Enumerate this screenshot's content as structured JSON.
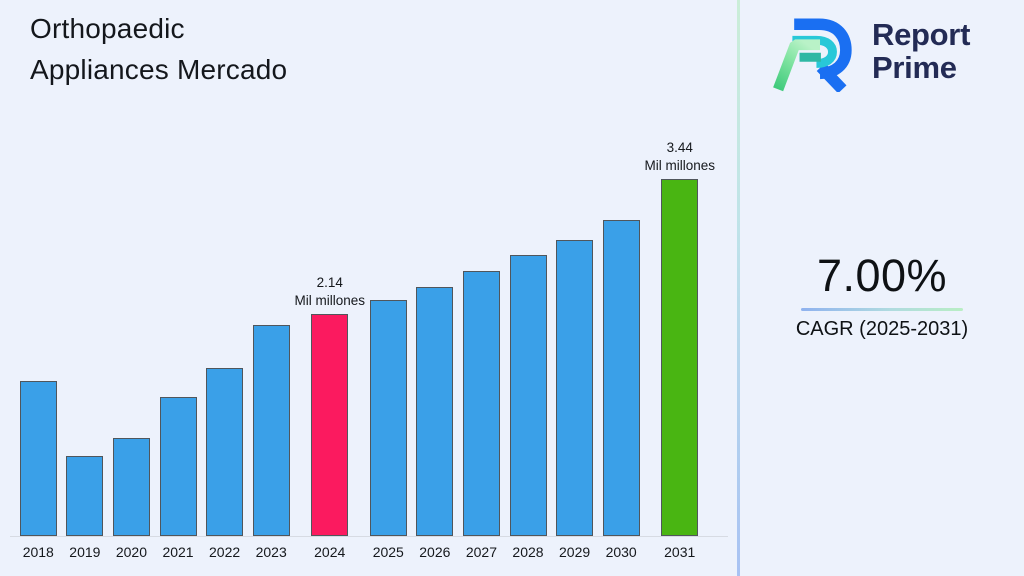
{
  "header": {
    "title": "Orthopaedic\nAppliances Mercado"
  },
  "logo": {
    "name_line1": "Report",
    "name_line2": "Prime"
  },
  "cagr": {
    "value": "7.00%",
    "label": "CAGR (2025-2031)"
  },
  "chart_data": {
    "type": "bar",
    "title": "Orthopaedic Appliances Mercado",
    "value_unit": "Mil millones",
    "categories": [
      "2018",
      "2019",
      "2020",
      "2021",
      "2022",
      "2023",
      "2024",
      "2025",
      "2026",
      "2027",
      "2028",
      "2029",
      "2030",
      "2031"
    ],
    "values": [
      1.49,
      0.77,
      0.94,
      1.34,
      1.62,
      2.03,
      2.14,
      2.27,
      2.4,
      2.55,
      2.71,
      2.85,
      3.04,
      3.44
    ],
    "data_labels": {
      "2024": {
        "value": "2.14",
        "unit": "Mil millones"
      },
      "2031": {
        "value": "3.44",
        "unit": "Mil millones"
      }
    },
    "bar_color_default": "#3aa0e8",
    "highlight_colors": {
      "2024": "#fb1a5f",
      "2031": "#49b512"
    },
    "ylim": [
      0,
      3.6
    ],
    "grid": false,
    "y_axis_visible": false,
    "x_axis_labels_visible": true,
    "legend": "none"
  },
  "colors": {
    "background": "#edf2fc",
    "bar_blue": "#3aa0e8",
    "bar_pink": "#fb1a5f",
    "bar_green": "#49b512",
    "bar_border": "#50565c",
    "logo_navy": "#232b55",
    "logo_blue": "#1a6ff2",
    "logo_cyan": "#28c8d8",
    "logo_green": "#3fca7c",
    "divider_top": "#cbeed8",
    "divider_bottom": "#a8c2f3",
    "underline_left": "#8fb2ef",
    "underline_right": "#b9eec4",
    "axis_line": "#d7dbe3"
  }
}
